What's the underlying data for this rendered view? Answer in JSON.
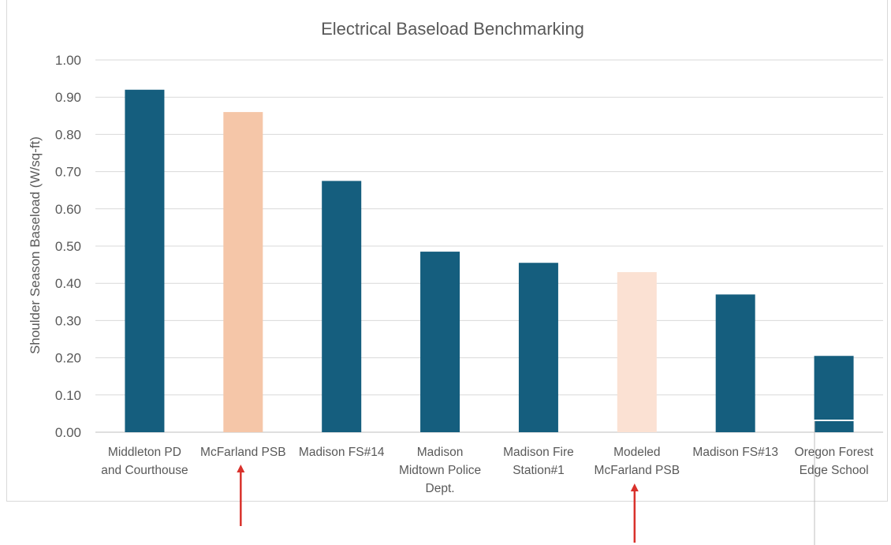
{
  "chart_data": {
    "type": "bar",
    "title": "Electrical Baseload Benchmarking",
    "xlabel": "",
    "ylabel": "Shoulder Season Baseload (W/sq-ft)",
    "ylim": [
      0,
      1.0
    ],
    "ytick_step": 0.1,
    "yticks": [
      "0.00",
      "0.10",
      "0.20",
      "0.30",
      "0.40",
      "0.50",
      "0.60",
      "0.70",
      "0.80",
      "0.90",
      "1.00"
    ],
    "grid": true,
    "legend": "none",
    "categories": [
      [
        "Middleton PD",
        "and Courthouse"
      ],
      [
        "McFarland PSB"
      ],
      [
        "Madison FS#14"
      ],
      [
        "Madison",
        "Midtown Police",
        "Dept."
      ],
      [
        "Madison Fire",
        "Station#1"
      ],
      [
        "Modeled",
        "McFarland PSB"
      ],
      [
        "Madison FS#13"
      ],
      [
        "Oregon Forest",
        "Edge School"
      ]
    ],
    "values": [
      0.92,
      0.86,
      0.675,
      0.485,
      0.455,
      0.43,
      0.37,
      0.205
    ],
    "bar_colors": [
      "#155E7E",
      "#F5C6A8",
      "#155E7E",
      "#155E7E",
      "#155E7E",
      "#FBE1D3",
      "#155E7E",
      "#155E7E"
    ],
    "annotations": [
      {
        "type": "arrow",
        "category_index": 1,
        "color": "#D9312B"
      },
      {
        "type": "arrow",
        "category_index": 5,
        "color": "#D9312B"
      }
    ]
  }
}
